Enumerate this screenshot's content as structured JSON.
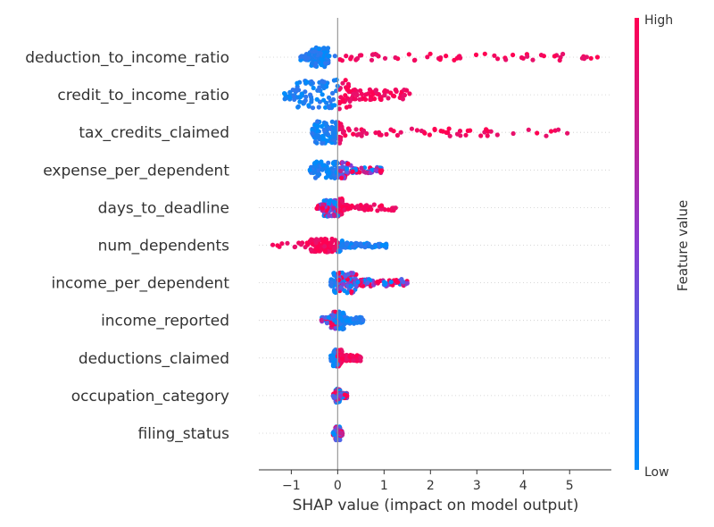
{
  "chart_data": {
    "type": "scatter",
    "subtype": "shap-beeswarm",
    "title": "",
    "xlabel": "SHAP value (impact on model output)",
    "ylabel": "",
    "xlim": [
      -1.7,
      5.9
    ],
    "x_ticks": [
      -1,
      0,
      1,
      2,
      3,
      4,
      5
    ],
    "x_tick_labels": [
      "−1",
      "0",
      "1",
      "2",
      "3",
      "4",
      "5"
    ],
    "grid": false,
    "colorbar": {
      "label": "Feature value",
      "high_label": "High",
      "low_label": "Low",
      "high_color": "#ff0052",
      "mid_color": "#8a3bd1",
      "low_color": "#008bfb"
    },
    "features": [
      {
        "name": "deduction_to_income_ratio",
        "min": -0.8,
        "max": 5.6,
        "core": [
          -0.6,
          -0.2
        ],
        "pos_color": "high",
        "neg_color": "low",
        "spread": 0.45
      },
      {
        "name": "credit_to_income_ratio",
        "min": -1.15,
        "max": 1.55,
        "core": [
          -0.9,
          0.3
        ],
        "pos_color": "high",
        "neg_color": "low",
        "spread": 0.85
      },
      {
        "name": "tax_credits_claimed",
        "min": -0.55,
        "max": 4.95,
        "core": [
          -0.5,
          0.1
        ],
        "pos_color": "high",
        "neg_color": "low",
        "spread": 0.55
      },
      {
        "name": "expense_per_dependent",
        "min": -0.6,
        "max": 0.95,
        "core": [
          -0.5,
          0.3
        ],
        "pos_color": "mixed",
        "neg_color": "low",
        "spread": 0.35
      },
      {
        "name": "days_to_deadline",
        "min": -0.45,
        "max": 1.25,
        "core": [
          -0.3,
          0.1
        ],
        "pos_color": "high",
        "neg_color": "mixed",
        "spread": 0.4
      },
      {
        "name": "num_dependents",
        "min": -1.4,
        "max": 1.05,
        "core": [
          -0.6,
          0.1
        ],
        "pos_color": "low",
        "neg_color": "high",
        "spread": 0.25
      },
      {
        "name": "income_per_dependent",
        "min": -0.15,
        "max": 1.5,
        "core": [
          -0.1,
          0.4
        ],
        "pos_color": "mixed",
        "neg_color": "low",
        "spread": 0.5
      },
      {
        "name": "income_reported",
        "min": -0.35,
        "max": 0.55,
        "core": [
          -0.15,
          0.15
        ],
        "pos_color": "low",
        "neg_color": "mixed",
        "spread": 0.4
      },
      {
        "name": "deductions_claimed",
        "min": -0.15,
        "max": 0.5,
        "core": [
          -0.1,
          0.1
        ],
        "pos_color": "high",
        "neg_color": "low",
        "spread": 0.35
      },
      {
        "name": "occupation_category",
        "min": -0.1,
        "max": 0.2,
        "core": [
          -0.05,
          0.05
        ],
        "pos_color": "mixed",
        "neg_color": "mixed",
        "spread": 0.25
      },
      {
        "name": "filing_status",
        "min": -0.1,
        "max": 0.1,
        "core": [
          -0.05,
          0.05
        ],
        "pos_color": "mixed",
        "neg_color": "mixed",
        "spread": 0.25
      }
    ]
  }
}
